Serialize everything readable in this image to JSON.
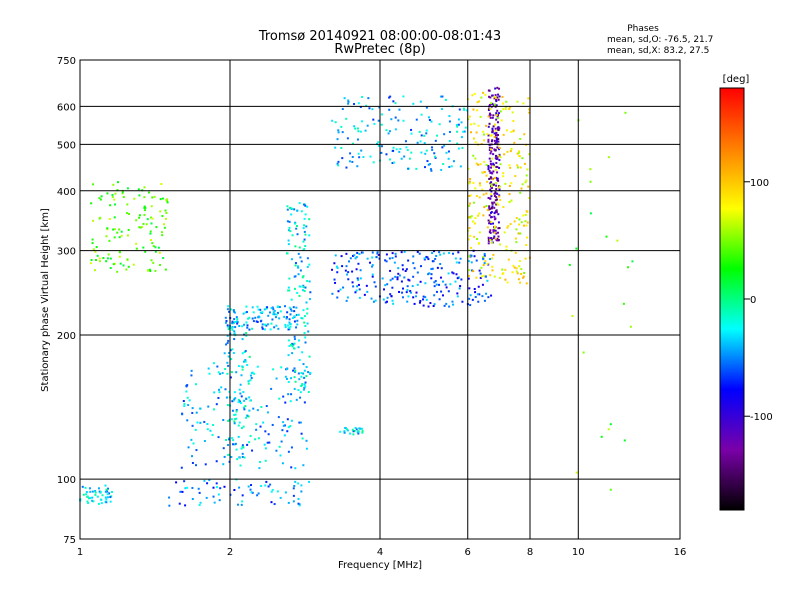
{
  "chart_data": {
    "type": "scatter",
    "title": "Tromsø 20140921 08:00:00-08:01:43",
    "subtitle": "RwPretec (8p)",
    "xlabel": "Frequency [MHz]",
    "ylabel": "Stationary phase Virtual Height [km]",
    "x_scale": "log",
    "y_scale": "log",
    "xlim": [
      1,
      16
    ],
    "ylim": [
      75,
      750
    ],
    "x_ticks": [
      1,
      2,
      4,
      6,
      8,
      10,
      16
    ],
    "x_tick_labels": [
      "1",
      "2",
      "4",
      "6",
      "8",
      "10",
      "16"
    ],
    "y_ticks": [
      75,
      100,
      200,
      300,
      400,
      500,
      600,
      750
    ],
    "y_tick_labels": [
      "75",
      "100",
      "200",
      "300",
      "400",
      "500",
      "600",
      "750"
    ],
    "grid": true,
    "stats": {
      "heading": "Phases",
      "line_o": "mean, sd,O: -76.5, 21.7",
      "line_x": "mean, sd,X:  83.2, 27.5"
    },
    "colorbar": {
      "label": "[deg]",
      "range": [
        -180,
        180
      ],
      "ticks": [
        -100,
        0,
        100
      ],
      "tick_labels": [
        "-100",
        "0",
        "100"
      ],
      "colormap": [
        "#000000",
        "#7a00a8",
        "#0000ff",
        "#00ffff",
        "#00ff00",
        "#ffff00",
        "#ff8000",
        "#ff0000"
      ]
    },
    "series": [
      {
        "x_range": [
          1.0,
          1.16
        ],
        "y_range": [
          88,
          97
        ],
        "phase": -30,
        "count": 50
      },
      {
        "x_range": [
          1.05,
          1.5
        ],
        "y_range": [
          270,
          420
        ],
        "phase": 40,
        "count": 140
      },
      {
        "x_range": [
          1.5,
          2.9
        ],
        "y_range": [
          88,
          100
        ],
        "phase": -50,
        "count": 70
      },
      {
        "x_range": [
          1.6,
          2.9
        ],
        "y_range": [
          105,
          175
        ],
        "phase": -40,
        "count": 160
      },
      {
        "x_range": [
          1.95,
          2.2
        ],
        "y_range": [
          110,
          215
        ],
        "phase": -30,
        "count": 110
      },
      {
        "x_range": [
          1.95,
          2.75
        ],
        "y_range": [
          205,
          230
        ],
        "phase": -40,
        "count": 120
      },
      {
        "x_range": [
          2.6,
          2.9
        ],
        "y_range": [
          150,
          380
        ],
        "phase": -30,
        "count": 150
      },
      {
        "x_range": [
          3.3,
          3.7
        ],
        "y_range": [
          124,
          128
        ],
        "phase": -30,
        "count": 25
      },
      {
        "x_range": [
          3.2,
          6.7
        ],
        "y_range": [
          229,
          300
        ],
        "phase": -60,
        "count": 260
      },
      {
        "x_range": [
          3.2,
          6.0
        ],
        "y_range": [
          440,
          630
        ],
        "phase": -40,
        "count": 170
      },
      {
        "x_range": [
          6.6,
          6.95
        ],
        "y_range": [
          310,
          660
        ],
        "phase": -120,
        "count": 220
      },
      {
        "x_range": [
          6.0,
          8.0
        ],
        "y_range": [
          255,
          650
        ],
        "phase": 80,
        "count": 260
      },
      {
        "x_range": [
          9.5,
          13.0
        ],
        "y_range": [
          80,
          660
        ],
        "phase": 40,
        "count": 22
      }
    ]
  }
}
